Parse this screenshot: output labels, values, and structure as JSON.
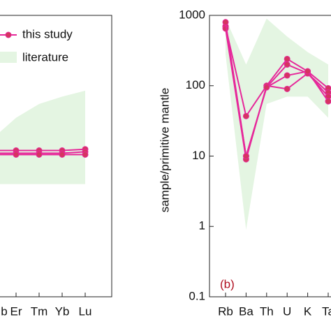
{
  "chart_data": [
    {
      "type": "line",
      "log": true,
      "categories": [
        "b",
        "Er",
        "Tm",
        "Yb",
        "Lu"
      ],
      "ylim": [
        0.1,
        1000
      ],
      "series": [
        {
          "name": "this study",
          "color": "#e6289a",
          "values": [
            12,
            12,
            12,
            12,
            12.5
          ]
        },
        {
          "color": "#e6289a",
          "values": [
            11,
            11,
            11,
            11,
            11.5
          ]
        },
        {
          "color": "#e6289a",
          "values": [
            10.5,
            10.5,
            10.5,
            10.5,
            10.5
          ]
        }
      ],
      "band": {
        "name": "literature",
        "color": "#e4f5e2",
        "lower": [
          4,
          4,
          4,
          4,
          4
        ],
        "upper": [
          18,
          35,
          55,
          70,
          85
        ]
      }
    },
    {
      "type": "line",
      "log": true,
      "categories": [
        "Rb",
        "Ba",
        "Th",
        "U",
        "K",
        "Ta"
      ],
      "ylabel": "sample/primitive mantle",
      "annotation": "(b)",
      "ylim": [
        0.1,
        1000
      ],
      "yticks": [
        0.1,
        1,
        10,
        100,
        1000
      ],
      "series": [
        {
          "color": "#e6289a",
          "values": [
            690,
            37,
            100,
            240,
            160,
            92
          ]
        },
        {
          "color": "#e6289a",
          "values": [
            700,
            10,
            95,
            200,
            150,
            80
          ]
        },
        {
          "color": "#e6289a",
          "values": [
            650,
            9,
            100,
            90,
            150,
            70
          ]
        },
        {
          "color": "#e6289a",
          "values": [
            800,
            10,
            95,
            140,
            160,
            60
          ]
        }
      ],
      "band": {
        "color": "#e4f5e2",
        "lower": [
          280,
          0.9,
          55,
          70,
          70,
          35
        ],
        "upper": [
          900,
          200,
          900,
          500,
          300,
          200
        ]
      }
    }
  ]
}
